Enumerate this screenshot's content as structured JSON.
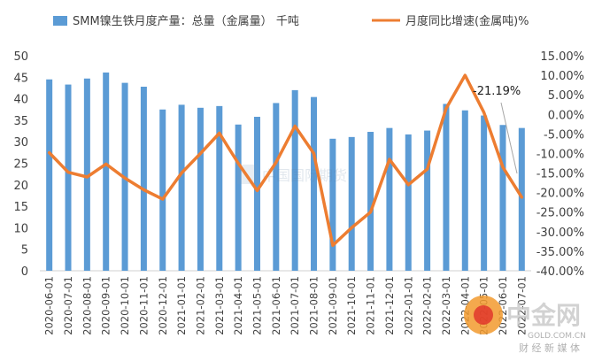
{
  "chart_data": {
    "type": "bar+line",
    "legend": {
      "bar_label": "SMM镍生铁月度产量：总量（金属量） 千吨",
      "line_label": "月度同比增速(金属吨)%",
      "placement": "top"
    },
    "categories": [
      "2020-06-01",
      "2020-07-01",
      "2020-08-01",
      "2020-09-01",
      "2020-10-01",
      "2020-11-01",
      "2020-12-01",
      "2021-01-01",
      "2021-02-01",
      "2021-03-01",
      "2021-04-01",
      "2021-05-01",
      "2021-06-01",
      "2021-07-01",
      "2021-08-01",
      "2021-09-01",
      "2021-10-01",
      "2021-11-01",
      "2021-12-01",
      "2022-01-01",
      "2022-02-01",
      "2022-03-01",
      "2022-04-01",
      "2022-05-01",
      "2022-06-01",
      "2022-07-01"
    ],
    "series": [
      {
        "name": "SMM镍生铁月度产量：总量（金属量） 千吨",
        "type": "bar",
        "axis": "left",
        "color": "#5b9bd5",
        "values": [
          44.5,
          43.3,
          44.7,
          46.1,
          43.7,
          42.8,
          37.5,
          38.6,
          37.9,
          38.3,
          34.0,
          35.8,
          39.0,
          42.0,
          40.4,
          30.7,
          31.1,
          32.3,
          33.2,
          31.7,
          32.6,
          38.8,
          37.3,
          36.1,
          33.9,
          33.2
        ]
      },
      {
        "name": "月度同比增速(金属吨)%",
        "type": "line",
        "axis": "right",
        "color": "#ed7d31",
        "values": [
          -9.8,
          -14.8,
          -16.0,
          -12.7,
          -16.3,
          -19.3,
          -21.7,
          -15.0,
          -10.0,
          -4.8,
          -12.5,
          -19.5,
          -12.3,
          -3.0,
          -10.0,
          -33.5,
          -29.0,
          -25.0,
          -11.5,
          -18.0,
          -14.0,
          1.5,
          10.0,
          0.5,
          -13.5,
          -21.19
        ]
      }
    ],
    "y_left": {
      "min": 0,
      "max": 50,
      "step": 5,
      "ticks": [
        "0",
        "5",
        "10",
        "15",
        "20",
        "25",
        "30",
        "35",
        "40",
        "45",
        "50"
      ]
    },
    "y_right": {
      "min": -40,
      "max": 15,
      "step": 5,
      "ticks": [
        "-40.00%",
        "-35.00%",
        "-30.00%",
        "-25.00%",
        "-20.00%",
        "-15.00%",
        "-10.00%",
        "-5.00%",
        "0.00%",
        "5.00%",
        "10.00%",
        "15.00%"
      ]
    },
    "annotation": {
      "text": "-21.19%",
      "category": "2022-07-01"
    },
    "grid": false
  },
  "watermark": {
    "center_text": "中国国际期货",
    "logo_text": "中金网",
    "logo_url": "GOLD.COM.CN",
    "logo_tagline": "财 经 新 媒 体"
  }
}
